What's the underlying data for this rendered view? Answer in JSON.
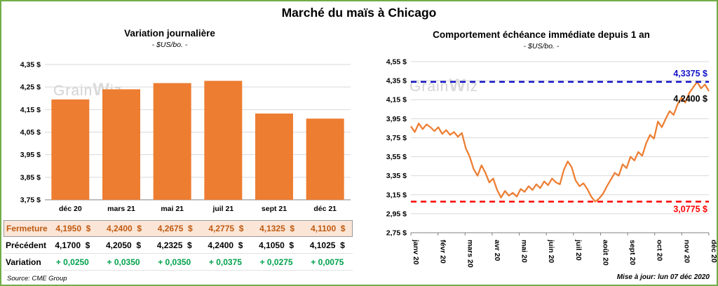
{
  "page": {
    "title": "Marché du maïs à Chicago",
    "source": "Source: CME Group",
    "updated": "Mise à jour: lun 07 déc 2020",
    "watermark": "GrainWiz"
  },
  "colors": {
    "accent_orange": "#ED7D31",
    "fermeture_bg": "#FBE5D6",
    "fermeture_text": "#C05A11",
    "variation_green": "#00A14B",
    "high_blue": "#1414C8",
    "low_red": "#FF0000",
    "border_green": "#70AD47",
    "grid_gray": "#D9D9D9"
  },
  "table": {
    "rows": [
      {
        "label": "Fermeture",
        "style": "fermeture",
        "values": [
          "4,1950  $",
          "4,2400  $",
          "4,2675  $",
          "4,2775  $",
          "4,1325  $",
          "4,1100  $"
        ]
      },
      {
        "label": "Précédent",
        "style": "precedent",
        "values": [
          "4,1700  $",
          "4,2050  $",
          "4,2325  $",
          "4,2400  $",
          "4,1050  $",
          "4,1025  $"
        ]
      },
      {
        "label": "Variation",
        "style": "variation",
        "values": [
          "+ 0,0250",
          "+ 0,0350",
          "+ 0,0350",
          "+ 0,0375",
          "+ 0,0275",
          "+ 0,0075"
        ]
      }
    ]
  },
  "chart_data": [
    {
      "type": "bar",
      "title": "Variation journalière",
      "subtitle": "- $US/bo. -",
      "categories": [
        "déc 20",
        "mars 21",
        "mai 21",
        "juil 21",
        "sept 21",
        "déc 21"
      ],
      "values": [
        4.195,
        4.24,
        4.2675,
        4.2775,
        4.1325,
        4.11
      ],
      "ylim": [
        3.75,
        4.35
      ],
      "ytick_values": [
        4.35,
        4.25,
        4.15,
        4.05,
        3.95,
        3.85,
        3.75
      ],
      "ytick_labels": [
        "4,35 $",
        "4,25 $",
        "4,15 $",
        "4,05 $",
        "3,95 $",
        "3,85 $",
        "3,75 $"
      ],
      "bar_color": "#ED7D31",
      "grid": true,
      "legend": "none"
    },
    {
      "type": "line",
      "title": "Comportement échéance immédiate depuis 1 an",
      "subtitle": "- $US/bo. -",
      "x_labels": [
        "janv 20",
        "févr 20",
        "mars 20",
        "avr 20",
        "mai 20",
        "juin 20",
        "juil 20",
        "août 20",
        "sept 20",
        "oct 20",
        "nov 20",
        "déc 20"
      ],
      "ylim": [
        2.75,
        4.55
      ],
      "ytick_values": [
        4.55,
        4.35,
        4.15,
        3.95,
        3.75,
        3.55,
        3.35,
        3.15,
        2.95,
        2.75
      ],
      "ytick_labels": [
        "4,55 $",
        "4,35 $",
        "4,15 $",
        "3,95 $",
        "3,75 $",
        "3,55 $",
        "3,35 $",
        "3,15 $",
        "2,95 $",
        "2,75 $"
      ],
      "line_color": "#ED7D31",
      "values": [
        3.87,
        3.81,
        3.9,
        3.84,
        3.89,
        3.86,
        3.82,
        3.86,
        3.79,
        3.83,
        3.78,
        3.81,
        3.76,
        3.8,
        3.64,
        3.55,
        3.42,
        3.35,
        3.46,
        3.38,
        3.28,
        3.32,
        3.2,
        3.12,
        3.19,
        3.14,
        3.17,
        3.13,
        3.21,
        3.18,
        3.24,
        3.2,
        3.26,
        3.22,
        3.29,
        3.25,
        3.32,
        3.28,
        3.26,
        3.41,
        3.5,
        3.44,
        3.3,
        3.24,
        3.27,
        3.21,
        3.13,
        3.0775,
        3.11,
        3.16,
        3.24,
        3.31,
        3.38,
        3.35,
        3.47,
        3.43,
        3.55,
        3.51,
        3.6,
        3.56,
        3.69,
        3.78,
        3.74,
        3.92,
        3.86,
        3.95,
        4.03,
        3.99,
        4.1,
        4.17,
        4.12,
        4.22,
        4.28,
        4.3375,
        4.27,
        4.31,
        4.24
      ],
      "high_line": {
        "value": 4.3375,
        "label": "4,3375 $",
        "color": "#1414C8"
      },
      "low_line": {
        "value": 3.0775,
        "label": "3,0775 $",
        "color": "#FF0000"
      },
      "last_point": {
        "value": 4.24,
        "label": "4,2400 $",
        "color": "#000000"
      },
      "grid": true,
      "legend": "none"
    }
  ]
}
